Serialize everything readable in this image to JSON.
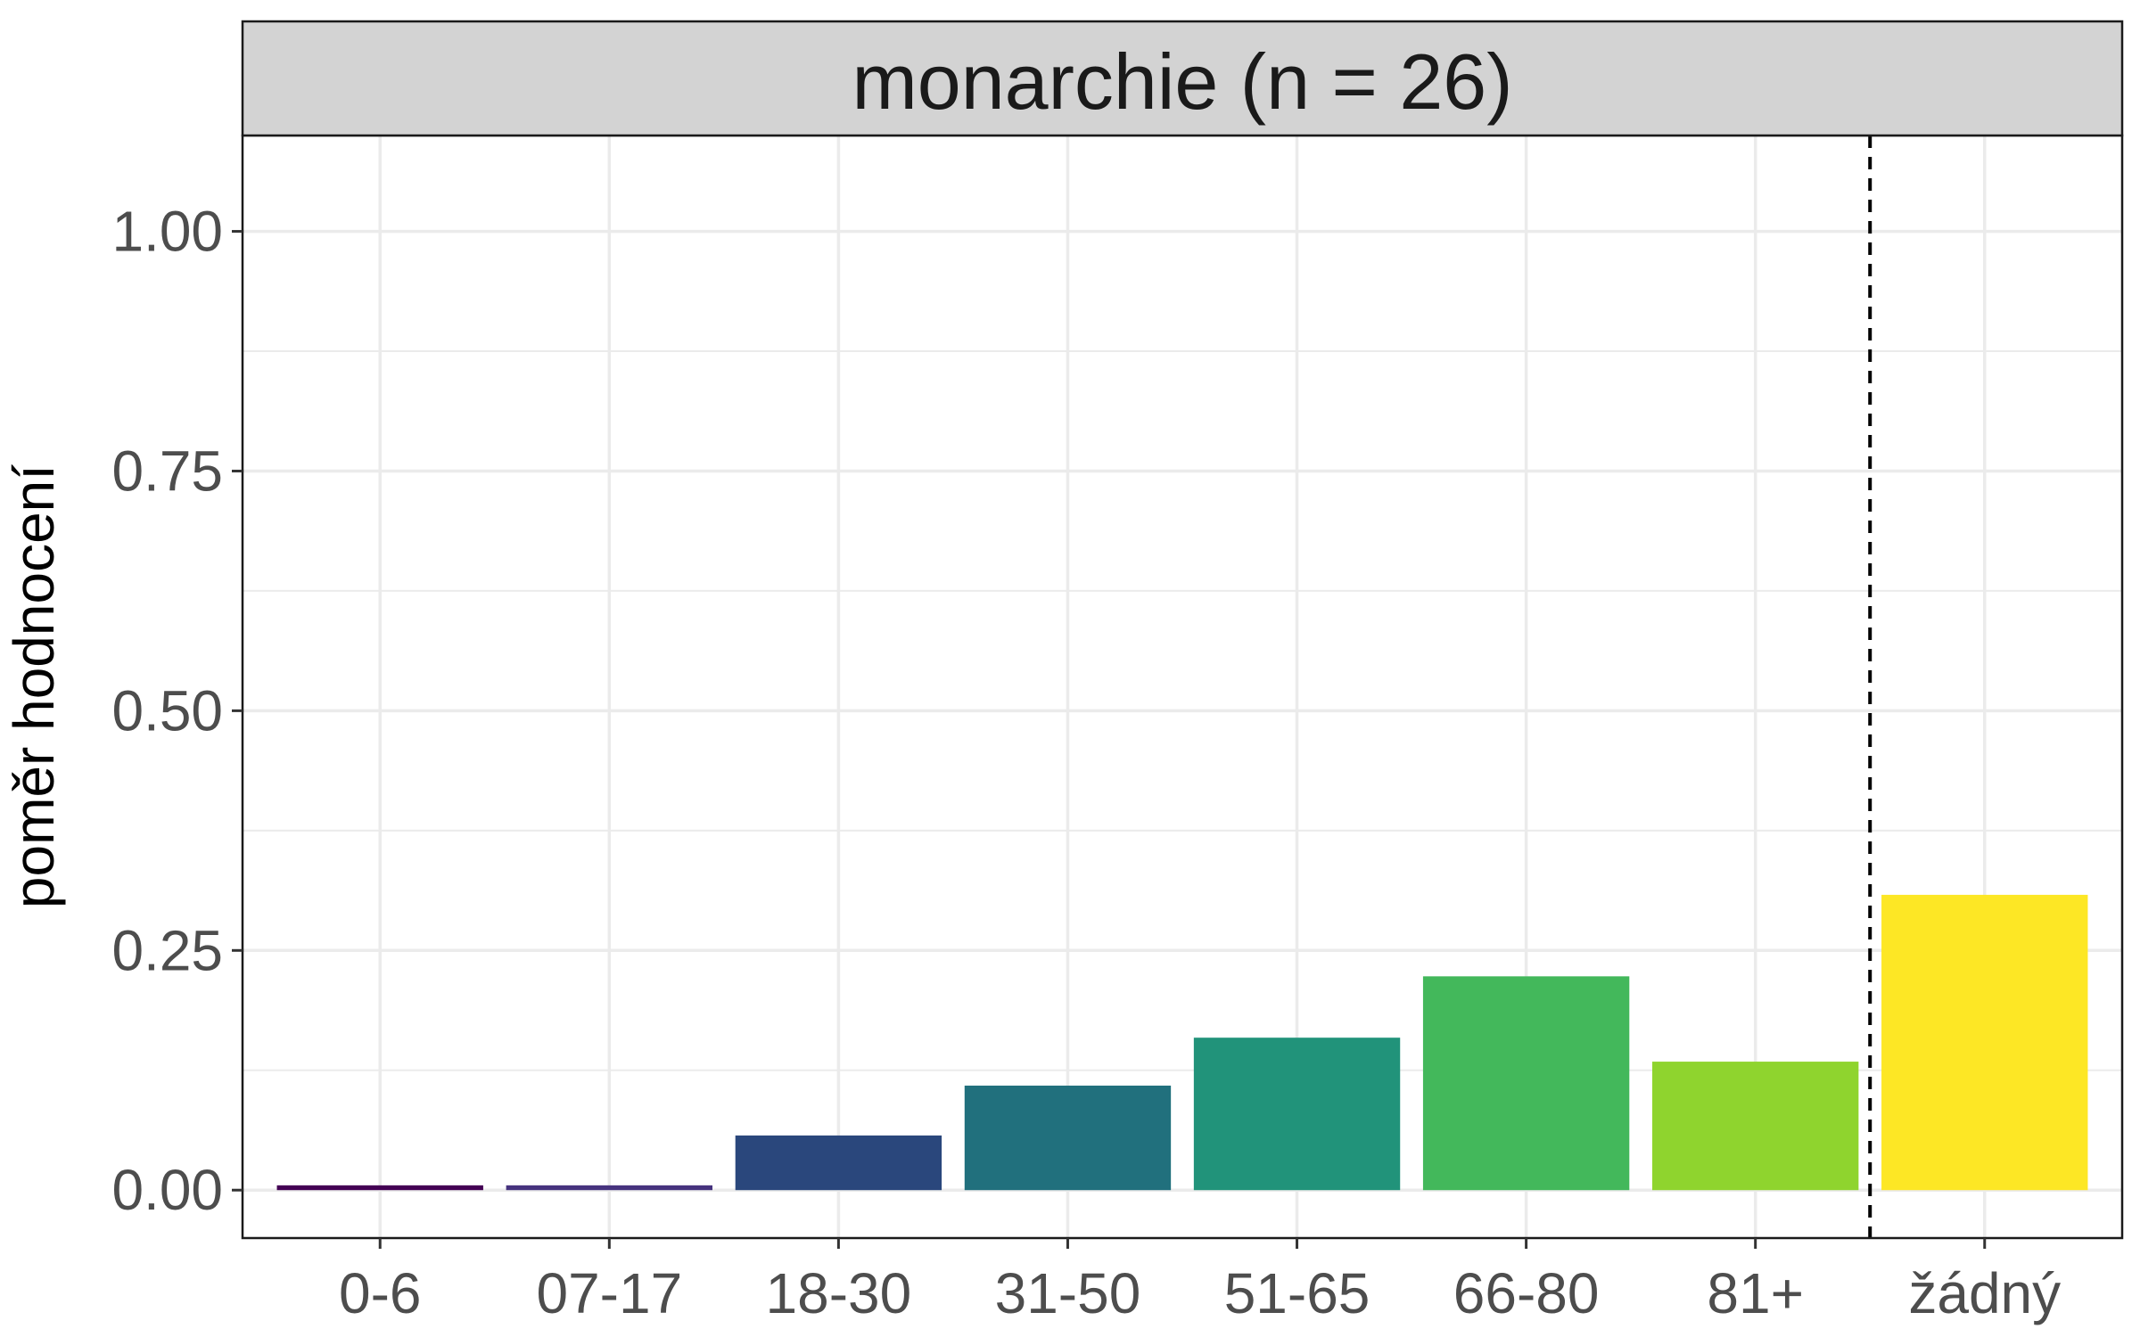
{
  "chart_data": {
    "type": "bar",
    "title": "monarchie (n = 26)",
    "xlabel": "",
    "ylabel": "poměr hodnocení",
    "categories": [
      "0-6",
      "07-17",
      "18-30",
      "31-50",
      "51-65",
      "66-80",
      "81+",
      "žádný"
    ],
    "values": [
      0.005,
      0.005,
      0.057,
      0.109,
      0.159,
      0.223,
      0.134,
      0.308
    ],
    "colors": [
      "#440154",
      "#46337E",
      "#2A477C",
      "#21707D",
      "#21937A",
      "#43B85B",
      "#8FD42E",
      "#FDE725"
    ],
    "ylim": [
      -0.05,
      1.1
    ],
    "yticks": [
      0.0,
      0.25,
      0.5,
      0.75,
      1.0
    ],
    "ytick_labels": [
      "0.00",
      "0.25",
      "0.50",
      "0.75",
      "1.00"
    ],
    "reference_line": {
      "between": [
        "81+",
        "žádný"
      ],
      "style": "dashed"
    },
    "grid": true,
    "legend": "none"
  }
}
